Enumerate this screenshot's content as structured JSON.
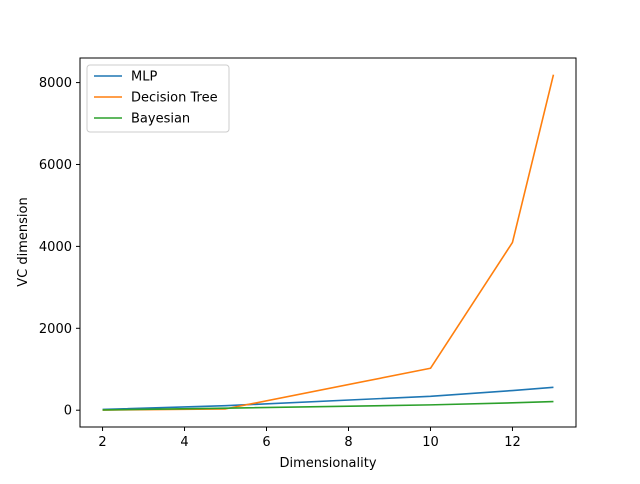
{
  "chart_data": {
    "type": "line",
    "title": "",
    "xlabel": "Dimensionality",
    "ylabel": "VC dimension",
    "xlim": [
      1.45,
      13.55
    ],
    "ylim": [
      -410,
      8600
    ],
    "xticks": [
      2,
      4,
      6,
      8,
      10,
      12
    ],
    "yticks": [
      0,
      2000,
      4000,
      6000,
      8000
    ],
    "grid": false,
    "legend_position": "top-left",
    "x": [
      2,
      5,
      10,
      12,
      13
    ],
    "series": [
      {
        "name": "MLP",
        "color": "#1f77b4",
        "values": [
          20,
          110,
          340,
          480,
          560
        ]
      },
      {
        "name": "Decision Tree",
        "color": "#ff7f0e",
        "values": [
          4,
          32,
          1024,
          4096,
          8192
        ]
      },
      {
        "name": "Bayesian",
        "color": "#2ca02c",
        "values": [
          6,
          50,
          130,
          180,
          210
        ]
      }
    ]
  }
}
